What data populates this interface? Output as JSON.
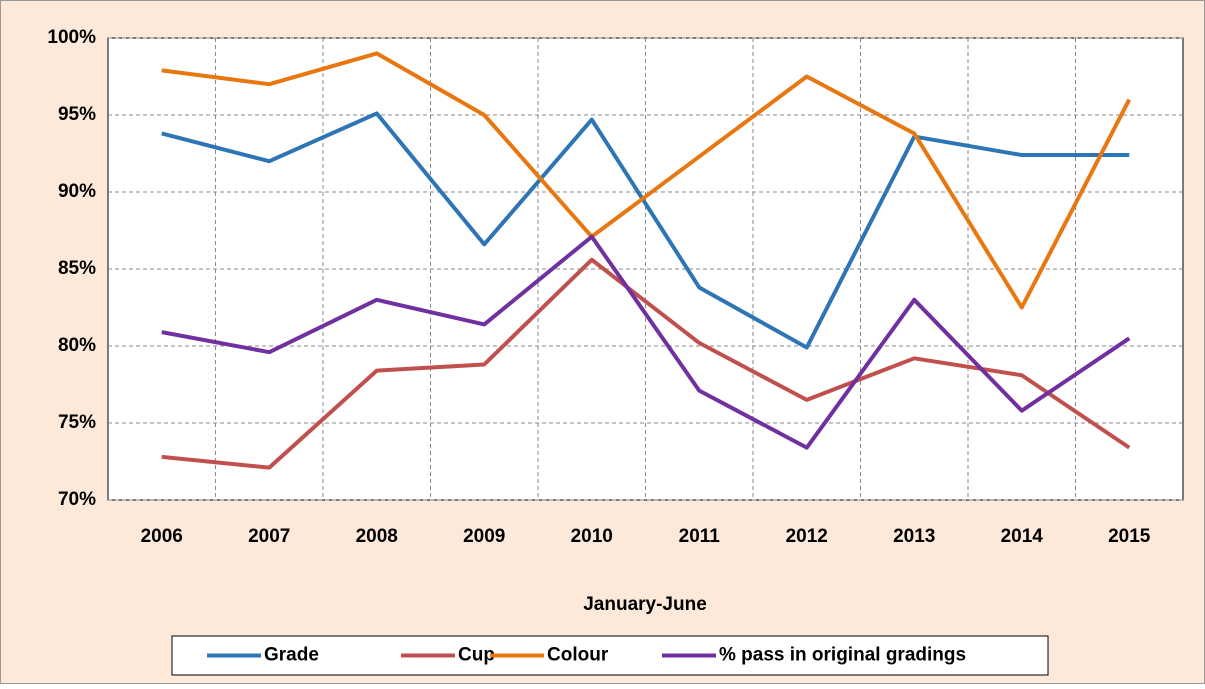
{
  "chart_data": {
    "type": "line",
    "x_label": "January-June",
    "categories": [
      "2006",
      "2007",
      "2008",
      "2009",
      "2010",
      "2011",
      "2012",
      "2013",
      "2014",
      "2015"
    ],
    "series": [
      {
        "name": "Grade",
        "color": "#2e75b6",
        "values": [
          93.8,
          92.0,
          95.1,
          86.6,
          94.7,
          83.8,
          79.9,
          93.6,
          92.4,
          92.4
        ]
      },
      {
        "name": "Cup",
        "color": "#c0504d",
        "values": [
          72.8,
          72.1,
          78.4,
          78.8,
          85.6,
          80.2,
          76.5,
          79.2,
          78.1,
          73.4
        ]
      },
      {
        "name": "Colour",
        "color": "#e8770f",
        "values": [
          97.9,
          97.0,
          99.0,
          95.0,
          87.1,
          92.3,
          97.5,
          93.8,
          82.5,
          96.0
        ]
      },
      {
        "name": "% pass in original gradings",
        "color": "#7030a0",
        "values": [
          80.9,
          79.6,
          83.0,
          81.4,
          87.1,
          77.1,
          73.4,
          83.0,
          75.8,
          80.5
        ]
      }
    ],
    "ylim": [
      70,
      100
    ],
    "yticks": [
      {
        "value": 70,
        "label": "70%"
      },
      {
        "value": 75,
        "label": "75%"
      },
      {
        "value": 80,
        "label": "80%"
      },
      {
        "value": 85,
        "label": "85%"
      },
      {
        "value": 90,
        "label": "90%"
      },
      {
        "value": 95,
        "label": "95%"
      },
      {
        "value": 100,
        "label": "100%"
      }
    ],
    "grid": true,
    "legend": "bottom"
  }
}
